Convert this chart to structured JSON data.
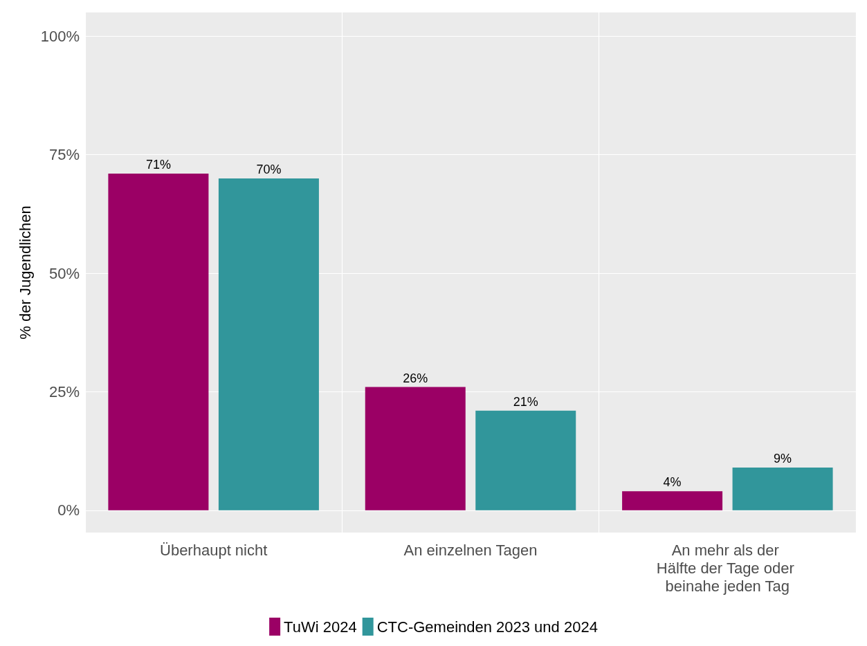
{
  "chart_data": {
    "type": "bar",
    "ylabel": "% der Jugendlichen",
    "categories": [
      "Überhaupt nicht",
      "An einzelnen Tagen",
      "An mehr als der Hälfte der Tage oder beinahe jeden Tag"
    ],
    "series": [
      {
        "name": "TuWi 2024",
        "color": "#9b0065",
        "values": [
          71,
          26,
          4
        ],
        "value_labels": [
          "71%",
          "26%",
          "4%"
        ]
      },
      {
        "name": "CTC-Gemeinden 2023 und 2024",
        "color": "#31969b",
        "values": [
          70,
          21,
          9
        ],
        "value_labels": [
          "70%",
          "21%",
          "9%"
        ]
      }
    ],
    "ylim": [
      -4.7,
      105
    ],
    "yticks": [
      {
        "value": 0,
        "label": "0%"
      },
      {
        "value": 25,
        "label": "25%"
      },
      {
        "value": 50,
        "label": "50%"
      },
      {
        "value": 75,
        "label": "75%"
      },
      {
        "value": 100,
        "label": "100%"
      }
    ],
    "grid": true,
    "legend": "bottom"
  }
}
